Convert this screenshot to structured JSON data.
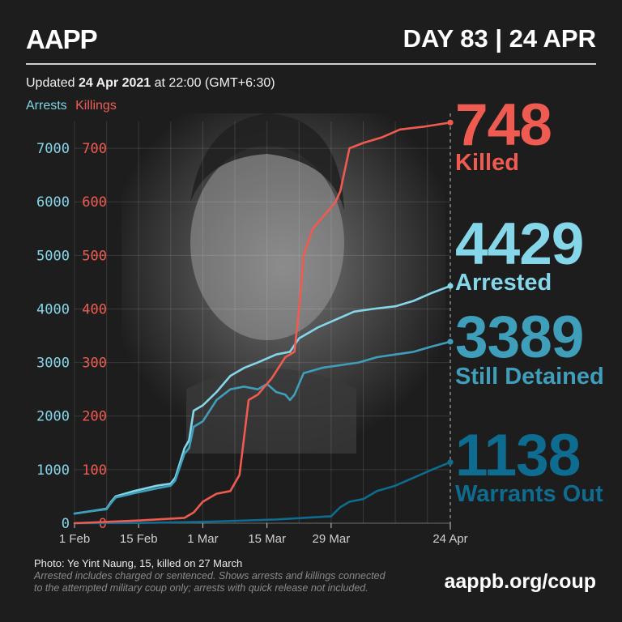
{
  "header": {
    "logo": "AAPP",
    "day_label": "DAY 83 | 24 APR",
    "updated_prefix": "Updated ",
    "updated_date": "24 Apr 2021",
    "updated_suffix": " at 22:00 (GMT+6:30)"
  },
  "legend": {
    "arrests": "Arrests",
    "killings": "Killings"
  },
  "stats": {
    "killed_value": "748",
    "killed_label": "Killed",
    "arrested_value": "4429",
    "arrested_label": "Arrested",
    "detained_value": "3389",
    "detained_label": "Still Detained",
    "warrants_value": "1138",
    "warrants_label": "Warrants Out"
  },
  "footer": {
    "photo_credit": "Photo: Ye Yint Naung, 15, killed on 27 March",
    "note_line1": "Arrested includes charged or sentenced. Shows arrests and killings connected",
    "note_line2": "to the attempted military coup only; arrests with quick release not included.",
    "url": "aappb.org/coup"
  },
  "colors": {
    "killings": "#ef5b50",
    "arrests": "#86d6ea",
    "detained": "#3f9fbb",
    "warrants": "#0d6c8f",
    "background": "#1d1d1d"
  },
  "chart_data": {
    "type": "line",
    "x_ticks": [
      "1 Feb",
      "15 Feb",
      "1 Mar",
      "15 Mar",
      "29 Mar",
      "24 Apr"
    ],
    "x_tick_days": [
      0,
      14,
      28,
      42,
      56,
      82
    ],
    "x_range_days": [
      0,
      82
    ],
    "y_left": {
      "label": "Arrests",
      "ticks": [
        0,
        1000,
        2000,
        3000,
        4000,
        5000,
        6000,
        7000
      ],
      "range": [
        0,
        7500
      ]
    },
    "y_right": {
      "label": "Killings",
      "ticks": [
        0,
        100,
        200,
        300,
        400,
        500,
        600,
        700
      ],
      "range": [
        0,
        750
      ]
    },
    "grid": true,
    "series": [
      {
        "name": "Arrests",
        "axis": "left",
        "color": "#86d6ea",
        "points": [
          [
            0,
            180
          ],
          [
            4,
            230
          ],
          [
            7,
            270
          ],
          [
            8,
            400
          ],
          [
            9,
            500
          ],
          [
            13,
            600
          ],
          [
            18,
            700
          ],
          [
            21,
            740
          ],
          [
            22,
            850
          ],
          [
            24,
            1400
          ],
          [
            25,
            1550
          ],
          [
            26,
            2100
          ],
          [
            28,
            2200
          ],
          [
            31,
            2450
          ],
          [
            34,
            2750
          ],
          [
            37,
            2900
          ],
          [
            40,
            3000
          ],
          [
            44,
            3150
          ],
          [
            47,
            3200
          ],
          [
            49,
            3450
          ],
          [
            53,
            3650
          ],
          [
            57,
            3800
          ],
          [
            61,
            3950
          ],
          [
            65,
            4000
          ],
          [
            70,
            4050
          ],
          [
            74,
            4150
          ],
          [
            78,
            4300
          ],
          [
            82,
            4429
          ]
        ]
      },
      {
        "name": "Still Detained",
        "axis": "left",
        "color": "#3f9fbb",
        "points": [
          [
            0,
            180
          ],
          [
            4,
            230
          ],
          [
            7,
            260
          ],
          [
            8,
            380
          ],
          [
            9,
            480
          ],
          [
            13,
            560
          ],
          [
            18,
            650
          ],
          [
            21,
            700
          ],
          [
            22,
            800
          ],
          [
            24,
            1300
          ],
          [
            25,
            1400
          ],
          [
            26,
            1800
          ],
          [
            28,
            1900
          ],
          [
            31,
            2300
          ],
          [
            34,
            2500
          ],
          [
            37,
            2550
          ],
          [
            40,
            2500
          ],
          [
            42,
            2600
          ],
          [
            44,
            2450
          ],
          [
            46,
            2400
          ],
          [
            47,
            2300
          ],
          [
            48,
            2400
          ],
          [
            50,
            2800
          ],
          [
            54,
            2900
          ],
          [
            58,
            2950
          ],
          [
            62,
            3000
          ],
          [
            66,
            3100
          ],
          [
            70,
            3150
          ],
          [
            74,
            3200
          ],
          [
            78,
            3300
          ],
          [
            82,
            3389
          ]
        ]
      },
      {
        "name": "Warrants Out",
        "axis": "left",
        "color": "#0d6c8f",
        "points": [
          [
            0,
            0
          ],
          [
            15,
            5
          ],
          [
            30,
            30
          ],
          [
            44,
            70
          ],
          [
            50,
            100
          ],
          [
            56,
            130
          ],
          [
            58,
            300
          ],
          [
            60,
            400
          ],
          [
            63,
            450
          ],
          [
            66,
            600
          ],
          [
            70,
            700
          ],
          [
            74,
            850
          ],
          [
            78,
            1000
          ],
          [
            82,
            1138
          ]
        ]
      },
      {
        "name": "Killings",
        "axis": "right",
        "color": "#ef5b50",
        "points": [
          [
            0,
            0
          ],
          [
            14,
            5
          ],
          [
            24,
            10
          ],
          [
            26,
            20
          ],
          [
            28,
            40
          ],
          [
            31,
            55
          ],
          [
            34,
            60
          ],
          [
            36,
            90
          ],
          [
            38,
            230
          ],
          [
            40,
            240
          ],
          [
            43,
            270
          ],
          [
            46,
            310
          ],
          [
            48,
            320
          ],
          [
            49,
            400
          ],
          [
            50,
            500
          ],
          [
            52,
            550
          ],
          [
            54,
            570
          ],
          [
            57,
            600
          ],
          [
            58,
            620
          ],
          [
            60,
            700
          ],
          [
            63,
            710
          ],
          [
            67,
            720
          ],
          [
            71,
            735
          ],
          [
            76,
            740
          ],
          [
            82,
            748
          ]
        ]
      }
    ]
  }
}
